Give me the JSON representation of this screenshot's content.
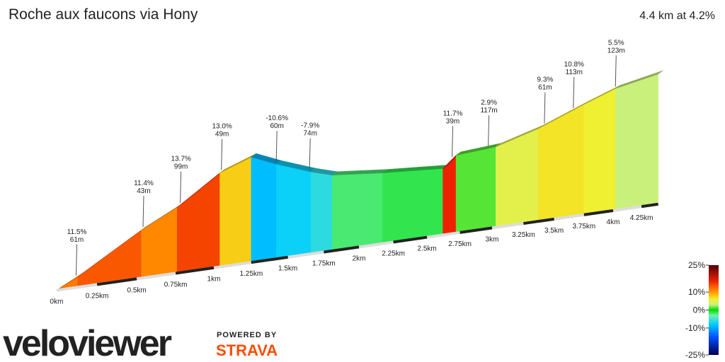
{
  "chart_data": {
    "type": "elevation-profile",
    "title": "Roche aux faucons via Hony",
    "summary": "4.4 km at 4.2%",
    "x": [
      0,
      0.13,
      0.53,
      0.76,
      1.04,
      1.25,
      1.42,
      1.66,
      1.81,
      2.17,
      2.62,
      2.72,
      3.03,
      3.37,
      3.75,
      4.02,
      4.4
    ],
    "elevation": [
      0,
      15,
      68,
      93,
      133,
      149,
      134,
      116,
      107,
      100,
      94,
      110,
      114,
      131,
      156,
      172,
      184
    ],
    "xlim": [
      0,
      4.4
    ],
    "xticks": [
      {
        "value": 0,
        "label": "0km"
      },
      {
        "value": 0.25,
        "label": "0.25km"
      },
      {
        "value": 0.5,
        "label": "0.5km"
      },
      {
        "value": 0.75,
        "label": "0.75km"
      },
      {
        "value": 1,
        "label": "1km"
      },
      {
        "value": 1.25,
        "label": "1.25km"
      },
      {
        "value": 1.5,
        "label": "1.5km"
      },
      {
        "value": 1.75,
        "label": "1.75km"
      },
      {
        "value": 2,
        "label": "2km"
      },
      {
        "value": 2.25,
        "label": "2.25km"
      },
      {
        "value": 2.5,
        "label": "2.5km"
      },
      {
        "value": 2.75,
        "label": "2.75km"
      },
      {
        "value": 3,
        "label": "3km"
      },
      {
        "value": 3.25,
        "label": "3.25km"
      },
      {
        "value": 3.5,
        "label": "3.5km"
      },
      {
        "value": 3.75,
        "label": "3.75km"
      },
      {
        "value": 4,
        "label": "4km"
      },
      {
        "value": 4.25,
        "label": "4.25km"
      }
    ],
    "annotations": [
      {
        "x": 0.12,
        "gradient": "11.5%",
        "length": "61m"
      },
      {
        "x": 0.54,
        "gradient": "11.4%",
        "length": "43m"
      },
      {
        "x": 0.78,
        "gradient": "13.7%",
        "length": "99m"
      },
      {
        "x": 1.05,
        "gradient": "13.0%",
        "length": "49m"
      },
      {
        "x": 1.42,
        "gradient": "-10.6%",
        "length": "60m"
      },
      {
        "x": 1.65,
        "gradient": "-7.9%",
        "length": "74m"
      },
      {
        "x": 2.69,
        "gradient": "11.7%",
        "length": "39m"
      },
      {
        "x": 2.97,
        "gradient": "2.9%",
        "length": "117m"
      },
      {
        "x": 3.42,
        "gradient": "9.3%",
        "length": "61m"
      },
      {
        "x": 3.66,
        "gradient": "10.8%",
        "length": "113m"
      },
      {
        "x": 4.02,
        "gradient": "5.5%",
        "length": "123m"
      }
    ],
    "colorbar": {
      "lim": [
        -25,
        25
      ],
      "ticks": [
        {
          "value": 25,
          "label": "25%"
        },
        {
          "value": 10,
          "label": "10%"
        },
        {
          "value": 0,
          "label": "0%"
        },
        {
          "value": -10,
          "label": "-10%"
        },
        {
          "value": -25,
          "label": "-25%"
        }
      ],
      "stops": [
        {
          "value": -25,
          "color": "#000050"
        },
        {
          "value": -15,
          "color": "#0050ff"
        },
        {
          "value": -8,
          "color": "#00ccff"
        },
        {
          "value": -3,
          "color": "#70f0b0"
        },
        {
          "value": 0,
          "color": "#00dd00"
        },
        {
          "value": 3,
          "color": "#c8f080"
        },
        {
          "value": 6,
          "color": "#f0f030"
        },
        {
          "value": 9,
          "color": "#ffb000"
        },
        {
          "value": 12,
          "color": "#ff7000"
        },
        {
          "value": 16,
          "color": "#ee2200"
        },
        {
          "value": 25,
          "color": "#500000"
        }
      ]
    },
    "brand": {
      "name": "veloviewer",
      "powered": "POWERED BY",
      "partner": "STRAVA"
    }
  }
}
